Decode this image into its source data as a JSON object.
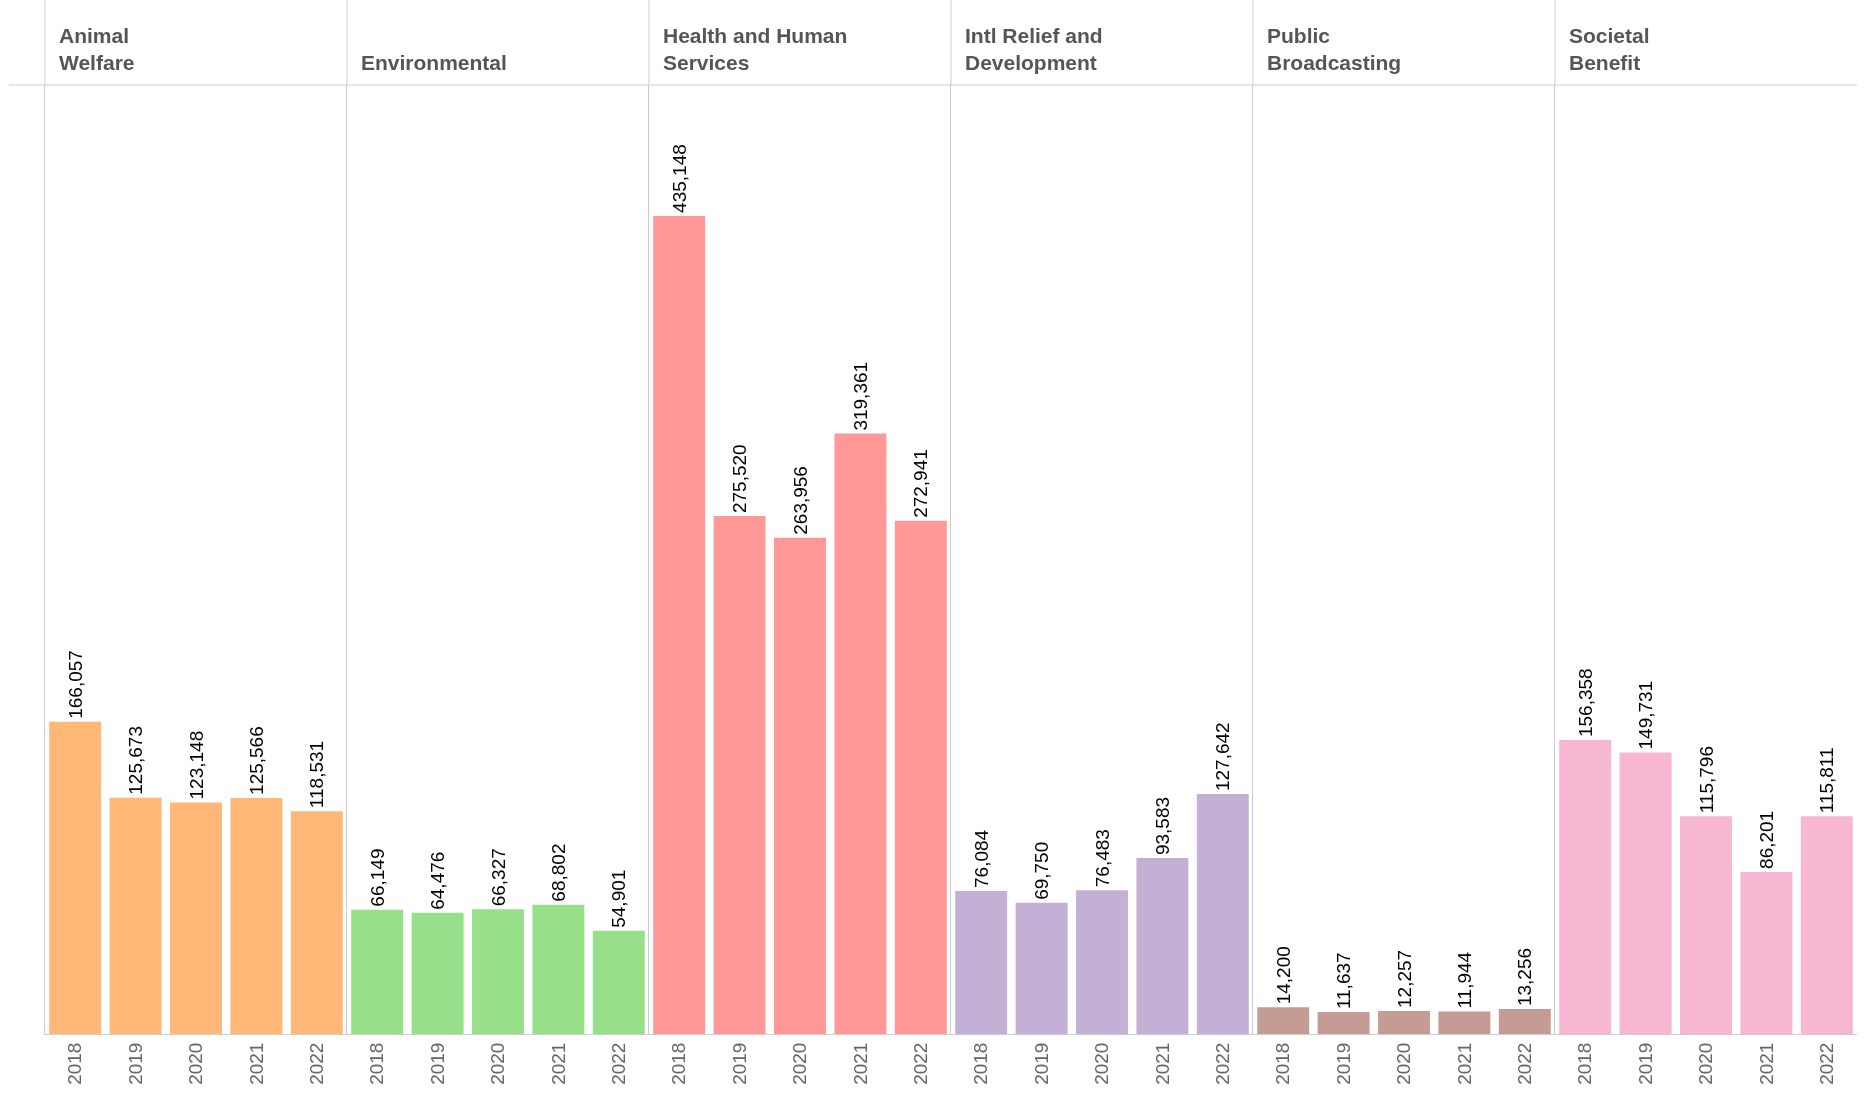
{
  "chart_data": [
    {
      "type": "bar",
      "title": "Animal\nWelfare",
      "categories": [
        "2018",
        "2019",
        "2020",
        "2021",
        "2022"
      ],
      "values": [
        166057,
        125673,
        123148,
        125566,
        118531
      ],
      "value_labels": [
        "166,057",
        "125,673",
        "123,148",
        "125,566",
        "118,531"
      ],
      "color": "#ffb878",
      "tick_labels": "x"
    },
    {
      "type": "bar",
      "title": "Environmental",
      "categories": [
        "2018",
        "2019",
        "2020",
        "2021",
        "2022"
      ],
      "values": [
        66149,
        64476,
        66327,
        68802,
        54901
      ],
      "value_labels": [
        "66,149",
        "64,476",
        "66,327",
        "68,802",
        "54,901"
      ],
      "color": "#98df8a",
      "tick_labels": "x"
    },
    {
      "type": "bar",
      "title": "Health and Human\nServices",
      "categories": [
        "2018",
        "2019",
        "2020",
        "2021",
        "2022"
      ],
      "values": [
        435148,
        275520,
        263956,
        319361,
        272941
      ],
      "value_labels": [
        "435,148",
        "275,520",
        "263,956",
        "319,361",
        "272,941"
      ],
      "color": "#ff9896",
      "tick_labels": "x"
    },
    {
      "type": "bar",
      "title": "Intl Relief and\nDevelopment",
      "categories": [
        "2018",
        "2019",
        "2020",
        "2021",
        "2022"
      ],
      "values": [
        76084,
        69750,
        76483,
        93583,
        127642
      ],
      "value_labels": [
        "76,084",
        "69,750",
        "76,483",
        "93,583",
        "127,642"
      ],
      "color": "#c5b0d5",
      "tick_labels": "x"
    },
    {
      "type": "bar",
      "title": "Public\nBroadcasting",
      "categories": [
        "2018",
        "2019",
        "2020",
        "2021",
        "2022"
      ],
      "values": [
        14200,
        11637,
        12257,
        11944,
        13256
      ],
      "value_labels": [
        "14,200",
        "11,637",
        "12,257",
        "11,944",
        "13,256"
      ],
      "color": "#c49c94",
      "tick_labels": "x"
    },
    {
      "type": "bar",
      "title": "Societal\nBenefit",
      "categories": [
        "2018",
        "2019",
        "2020",
        "2021",
        "2022"
      ],
      "values": [
        156358,
        149731,
        115796,
        86201,
        115811
      ],
      "value_labels": [
        "156,358",
        "149,731",
        "115,796",
        "86,201",
        "115,811"
      ],
      "color": "#f7b6d2",
      "tick_labels": "x"
    }
  ]
}
